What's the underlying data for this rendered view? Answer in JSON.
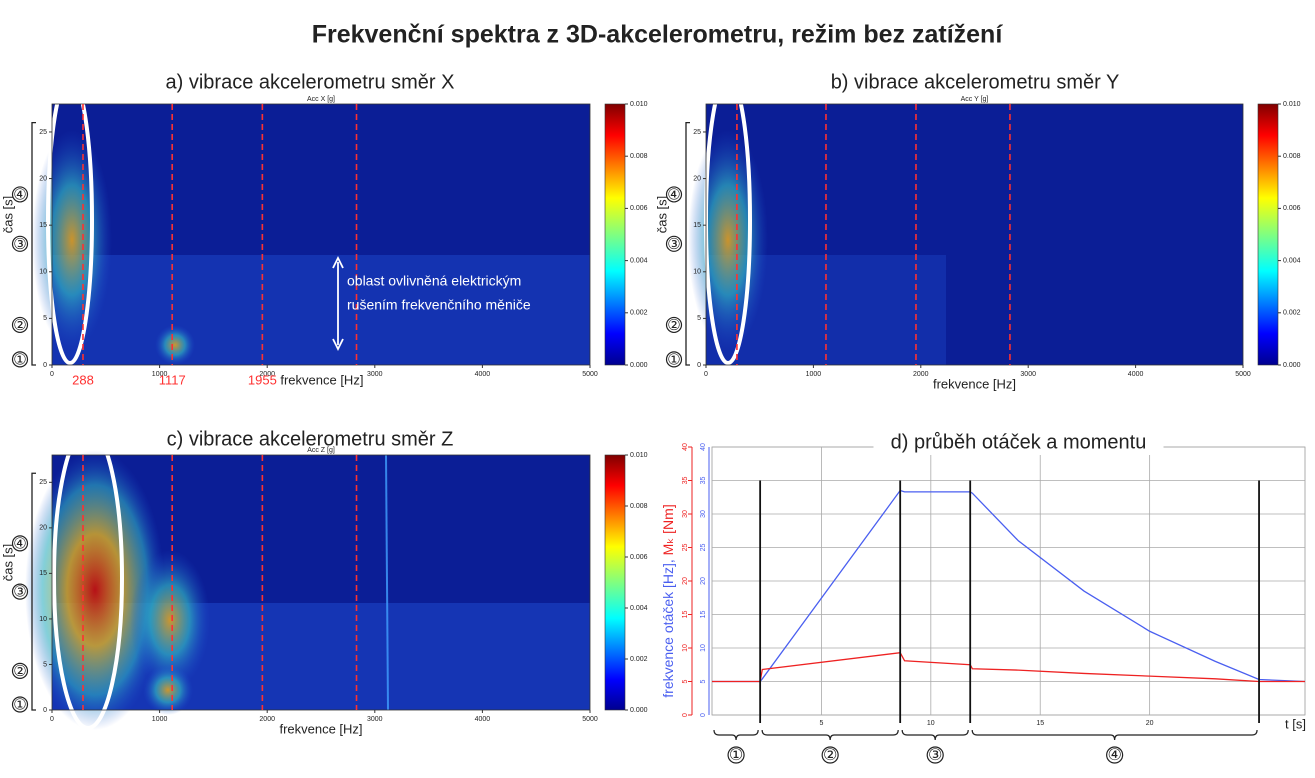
{
  "title": "Frekvenční spektra z 3D-akcelerometru, režim bez zatížení",
  "chart_data": [
    {
      "type": "heatmap",
      "title": "a) vibrace akcelerometru směr X",
      "label": "Acc X [g]",
      "xlabel": "frekvence [Hz]",
      "ylabel": "čas [s]",
      "xlim": [
        0,
        5000
      ],
      "xticks": [
        0,
        1000,
        2000,
        3000,
        4000,
        5000
      ],
      "ylim": [
        0,
        28
      ],
      "yticks": [
        0,
        5,
        10,
        15,
        20,
        25
      ],
      "clim": [
        0,
        0.01
      ],
      "cticks": [
        {
          "value": 0,
          "label": "0.000"
        },
        {
          "value": 0.002,
          "label": "0.002"
        },
        {
          "value": 0.004,
          "label": "0.004"
        },
        {
          "value": 0.006,
          "label": "0.006"
        },
        {
          "value": 0.008,
          "label": "0.008"
        },
        {
          "value": 0.01,
          "label": "0.010"
        }
      ],
      "vlines": [
        288,
        1117,
        1955,
        2830
      ],
      "vline_labels": [
        288,
        1117,
        1955
      ],
      "vline_color": "#ff3030",
      "phase_labels": [
        "①",
        "②",
        "③",
        "④"
      ],
      "annotations": [
        "oblast ovlivněná elektrickým",
        "rušením frekvenčního měniče"
      ]
    },
    {
      "type": "heatmap",
      "title": "b) vibrace akcelerometru směr Y",
      "label": "Acc Y [g]",
      "xlabel": "frekvence [Hz]",
      "ylabel": "čas [s]",
      "xlim": [
        0,
        5000
      ],
      "xticks": [
        0,
        1000,
        2000,
        3000,
        4000,
        5000
      ],
      "ylim": [
        0,
        28
      ],
      "yticks": [
        0,
        5,
        10,
        15,
        20,
        25
      ],
      "clim": [
        0,
        0.01
      ],
      "cticks": [
        {
          "value": 0,
          "label": "0.000"
        },
        {
          "value": 0.002,
          "label": "0.002"
        },
        {
          "value": 0.004,
          "label": "0.004"
        },
        {
          "value": 0.006,
          "label": "0.006"
        },
        {
          "value": 0.008,
          "label": "0.008"
        },
        {
          "value": 0.01,
          "label": "0.010"
        }
      ],
      "vlines": [
        288,
        1117,
        1955,
        2830
      ],
      "vline_color": "#ff3030",
      "phase_labels": [
        "①",
        "②",
        "③",
        "④"
      ]
    },
    {
      "type": "heatmap",
      "title": "c) vibrace akcelerometru směr Z",
      "label": "Acc Z [g]",
      "xlabel": "frekvence [Hz]",
      "ylabel": "čas [s]",
      "xlim": [
        0,
        5000
      ],
      "xticks": [
        0,
        1000,
        2000,
        3000,
        4000,
        5000
      ],
      "ylim": [
        0,
        28
      ],
      "yticks": [
        0,
        5,
        10,
        15,
        20,
        25
      ],
      "clim": [
        0,
        0.01
      ],
      "cticks": [
        {
          "value": 0,
          "label": "0.000"
        },
        {
          "value": 0.002,
          "label": "0.002"
        },
        {
          "value": 0.004,
          "label": "0.004"
        },
        {
          "value": 0.006,
          "label": "0.006"
        },
        {
          "value": 0.008,
          "label": "0.008"
        },
        {
          "value": 0.01,
          "label": "0.010"
        }
      ],
      "vlines": [
        288,
        1117,
        1955,
        2830
      ],
      "vline_color": "#ff3030",
      "phase_labels": [
        "①",
        "②",
        "③",
        "④"
      ]
    },
    {
      "type": "line",
      "title": "d) průběh otáček a momentu",
      "xlabel": "t [s]",
      "ylabel": "frekvence otáček [Hz], ",
      "y2label": "Mₖ [Nm]",
      "x": [
        0,
        2.2,
        2.3,
        8.6,
        8.8,
        11.8,
        11.9,
        14,
        17,
        20,
        23,
        25,
        27.1
      ],
      "xlim": [
        0,
        27.1
      ],
      "xticks": [
        5,
        10,
        15,
        20
      ],
      "ylim": [
        0,
        40
      ],
      "yticks": [
        0,
        5,
        10,
        15,
        20,
        25,
        30,
        35,
        40
      ],
      "y2lim": [
        0,
        40
      ],
      "y2ticks": [
        0,
        5,
        10,
        15,
        20,
        25,
        30,
        35,
        40
      ],
      "grid": true,
      "series": [
        {
          "name": "frekvence otáček",
          "color": "#4a5ff0",
          "values": [
            5,
            5,
            5.4,
            33.5,
            33.3,
            33.3,
            33.1,
            26,
            18.5,
            12.5,
            8,
            5.3,
            5
          ]
        },
        {
          "name": "Mk",
          "color": "#ee2222",
          "axis": "y2",
          "values": [
            5,
            5,
            6.8,
            9.3,
            8.1,
            7.5,
            6.9,
            6.7,
            6.2,
            5.8,
            5.4,
            5,
            5
          ]
        }
      ],
      "vlines": [
        2.2,
        8.6,
        11.8,
        25
      ],
      "phase_labels": [
        "①",
        "②",
        "③",
        "④"
      ]
    }
  ]
}
